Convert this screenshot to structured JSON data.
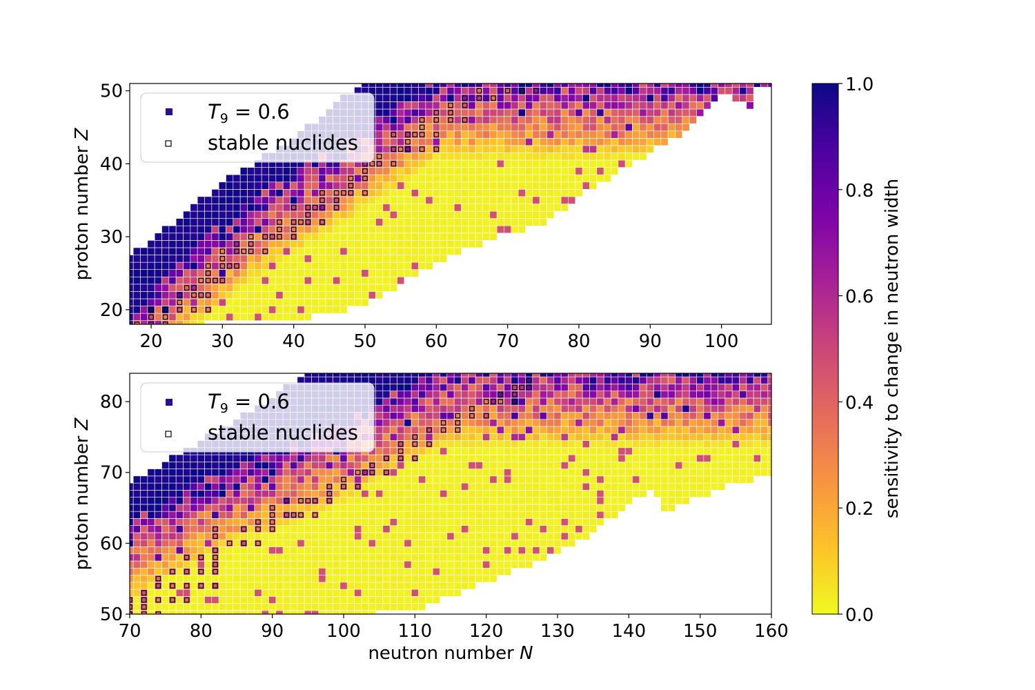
{
  "chart_data": [
    {
      "type": "heatmap",
      "panel": "top",
      "xlabel": "",
      "ylabel": "proton number Z",
      "xlim": [
        17,
        107
      ],
      "ylim": [
        18,
        51
      ],
      "xticks": [
        20,
        30,
        40,
        50,
        60,
        70,
        80,
        90,
        100
      ],
      "yticks": [
        20,
        30,
        40,
        50
      ],
      "zmin": 18,
      "zmax": 51,
      "dripline": {
        "anchors_N": [
          17,
          20,
          25,
          30,
          35,
          40,
          45,
          50,
          60,
          70,
          75,
          80,
          90,
          95,
          100,
          104,
          105,
          107
        ],
        "anchors_Z": [
          18,
          18,
          18,
          19,
          19,
          19,
          20,
          21,
          27,
          31,
          32,
          36,
          42,
          45,
          50,
          48,
          51,
          51
        ]
      },
      "proton_edge": {
        "anchors_N": [
          17,
          20,
          25,
          30,
          35,
          40,
          45,
          50,
          55,
          60,
          107
        ],
        "anchors_Z": [
          27,
          29,
          33,
          37,
          40,
          43,
          47,
          51,
          51,
          51,
          51
        ]
      },
      "high_zone": {
        "anchors_N": [
          17,
          20,
          25,
          30,
          35,
          40,
          45,
          50,
          60
        ],
        "anchors_Z": [
          18,
          21,
          27,
          31,
          35,
          38,
          41,
          44,
          51
        ]
      },
      "stable_nuclides": [
        [
          18,
          18
        ],
        [
          20,
          18
        ],
        [
          22,
          18
        ],
        [
          20,
          19
        ],
        [
          22,
          19
        ],
        [
          20,
          20
        ],
        [
          22,
          20
        ],
        [
          24,
          20
        ],
        [
          26,
          20
        ],
        [
          28,
          20
        ],
        [
          24,
          21
        ],
        [
          24,
          22
        ],
        [
          26,
          22
        ],
        [
          27,
          22
        ],
        [
          28,
          22
        ],
        [
          25,
          23
        ],
        [
          26,
          23
        ],
        [
          27,
          24
        ],
        [
          28,
          24
        ],
        [
          29,
          24
        ],
        [
          30,
          24
        ],
        [
          28,
          25
        ],
        [
          28,
          26
        ],
        [
          30,
          26
        ],
        [
          31,
          26
        ],
        [
          32,
          26
        ],
        [
          30,
          27
        ],
        [
          30,
          28
        ],
        [
          32,
          28
        ],
        [
          33,
          28
        ],
        [
          34,
          28
        ],
        [
          36,
          28
        ],
        [
          32,
          29
        ],
        [
          34,
          29
        ],
        [
          34,
          30
        ],
        [
          36,
          30
        ],
        [
          37,
          30
        ],
        [
          38,
          30
        ],
        [
          40,
          30
        ],
        [
          38,
          31
        ],
        [
          40,
          31
        ],
        [
          38,
          32
        ],
        [
          40,
          32
        ],
        [
          41,
          32
        ],
        [
          42,
          32
        ],
        [
          44,
          32
        ],
        [
          42,
          33
        ],
        [
          40,
          34
        ],
        [
          42,
          34
        ],
        [
          43,
          34
        ],
        [
          44,
          34
        ],
        [
          46,
          34
        ],
        [
          44,
          35
        ],
        [
          46,
          35
        ],
        [
          44,
          36
        ],
        [
          46,
          36
        ],
        [
          47,
          36
        ],
        [
          48,
          36
        ],
        [
          50,
          36
        ],
        [
          48,
          37
        ],
        [
          48,
          38
        ],
        [
          50,
          38
        ],
        [
          50,
          39
        ],
        [
          50,
          40
        ],
        [
          51,
          40
        ],
        [
          52,
          40
        ],
        [
          54,
          40
        ],
        [
          52,
          41
        ],
        [
          56,
          42
        ],
        [
          54,
          42
        ],
        [
          55,
          42
        ],
        [
          56,
          42
        ],
        [
          58,
          42
        ],
        [
          60,
          42
        ],
        [
          56,
          43
        ],
        [
          54,
          44
        ],
        [
          56,
          44
        ],
        [
          57,
          44
        ],
        [
          58,
          44
        ],
        [
          60,
          44
        ],
        [
          58,
          45
        ],
        [
          58,
          46
        ],
        [
          60,
          46
        ],
        [
          62,
          46
        ],
        [
          64,
          46
        ],
        [
          60,
          47
        ],
        [
          62,
          47
        ],
        [
          62,
          48
        ],
        [
          64,
          48
        ],
        [
          64,
          49
        ],
        [
          66,
          49
        ],
        [
          68,
          49
        ],
        [
          66,
          50
        ],
        [
          70,
          50
        ],
        [
          72,
          50
        ],
        [
          74,
          50
        ]
      ]
    },
    {
      "type": "heatmap",
      "panel": "bottom",
      "xlabel": "neutron number N",
      "ylabel": "proton number Z",
      "xlim": [
        70,
        160
      ],
      "ylim": [
        50,
        84
      ],
      "xticks": [
        70,
        80,
        90,
        100,
        110,
        120,
        130,
        140,
        150,
        160
      ],
      "yticks": [
        50,
        60,
        70,
        80
      ],
      "zmin": 50,
      "zmax": 84,
      "dripline": {
        "anchors_N": [
          70,
          100,
          110,
          115,
          120,
          125,
          130,
          135,
          140,
          143,
          145,
          150,
          155,
          160
        ],
        "anchors_Z": [
          50,
          50,
          51,
          53,
          55,
          57,
          59,
          62,
          66,
          68,
          65,
          67,
          69,
          70
        ]
      },
      "proton_edge": {
        "anchors_N": [
          70,
          75,
          80,
          85,
          90,
          95,
          100,
          160
        ],
        "anchors_Z": [
          68,
          71,
          74,
          77,
          80,
          84,
          84,
          84
        ]
      },
      "high_zone": {
        "anchors_N": [
          70,
          75,
          80,
          85,
          90,
          95,
          100,
          105,
          110,
          115
        ],
        "anchors_Z": [
          62,
          65,
          68,
          70,
          72,
          74,
          76,
          79,
          82,
          84
        ]
      },
      "stable_nuclides": [
        [
          70,
          50
        ],
        [
          72,
          50
        ],
        [
          74,
          50
        ],
        [
          70,
          51
        ],
        [
          72,
          51
        ],
        [
          70,
          52
        ],
        [
          72,
          52
        ],
        [
          74,
          52
        ],
        [
          76,
          52
        ],
        [
          78,
          52
        ],
        [
          72,
          53
        ],
        [
          74,
          54
        ],
        [
          76,
          54
        ],
        [
          78,
          54
        ],
        [
          80,
          54
        ],
        [
          82,
          54
        ],
        [
          74,
          55
        ],
        [
          76,
          56
        ],
        [
          78,
          56
        ],
        [
          80,
          56
        ],
        [
          82,
          56
        ],
        [
          82,
          57
        ],
        [
          78,
          58
        ],
        [
          80,
          58
        ],
        [
          82,
          58
        ],
        [
          82,
          59
        ],
        [
          84,
          60
        ],
        [
          86,
          60
        ],
        [
          88,
          60
        ],
        [
          82,
          61
        ],
        [
          82,
          62
        ],
        [
          86,
          62
        ],
        [
          88,
          62
        ],
        [
          90,
          62
        ],
        [
          88,
          63
        ],
        [
          90,
          63
        ],
        [
          90,
          64
        ],
        [
          92,
          64
        ],
        [
          93,
          64
        ],
        [
          94,
          64
        ],
        [
          96,
          64
        ],
        [
          90,
          65
        ],
        [
          92,
          66
        ],
        [
          94,
          66
        ],
        [
          95,
          66
        ],
        [
          96,
          66
        ],
        [
          98,
          66
        ],
        [
          98,
          67
        ],
        [
          98,
          68
        ],
        [
          100,
          68
        ],
        [
          102,
          68
        ],
        [
          100,
          69
        ],
        [
          102,
          70
        ],
        [
          103,
          70
        ],
        [
          104,
          70
        ],
        [
          106,
          70
        ],
        [
          104,
          71
        ],
        [
          106,
          72
        ],
        [
          108,
          72
        ],
        [
          110,
          72
        ],
        [
          108,
          73
        ],
        [
          108,
          74
        ],
        [
          110,
          74
        ],
        [
          112,
          74
        ],
        [
          110,
          75
        ],
        [
          112,
          76
        ],
        [
          114,
          76
        ],
        [
          116,
          76
        ],
        [
          114,
          77
        ],
        [
          116,
          77
        ],
        [
          116,
          78
        ],
        [
          118,
          78
        ],
        [
          120,
          78
        ],
        [
          118,
          79
        ],
        [
          120,
          80
        ],
        [
          121,
          80
        ],
        [
          122,
          80
        ],
        [
          124,
          80
        ],
        [
          122,
          81
        ],
        [
          124,
          81
        ],
        [
          124,
          82
        ],
        [
          125,
          82
        ],
        [
          126,
          82
        ],
        [
          126,
          83
        ]
      ]
    }
  ],
  "legend": {
    "entry1_label": "T",
    "entry1_subscript": "9",
    "entry1_value": " = 0.6",
    "entry2_label": "stable nuclides"
  },
  "colorbar": {
    "label": "sensitivity to change in neutron width",
    "ticks": [
      "0.0",
      "0.2",
      "0.4",
      "0.6",
      "0.8",
      "1.0"
    ],
    "range": [
      0,
      1
    ],
    "colormap": "plasma_r"
  },
  "colors": {
    "cell_border": "#ffffff",
    "stable_marker_edge": "#000000",
    "legend_marker": "#2b0c8c"
  }
}
